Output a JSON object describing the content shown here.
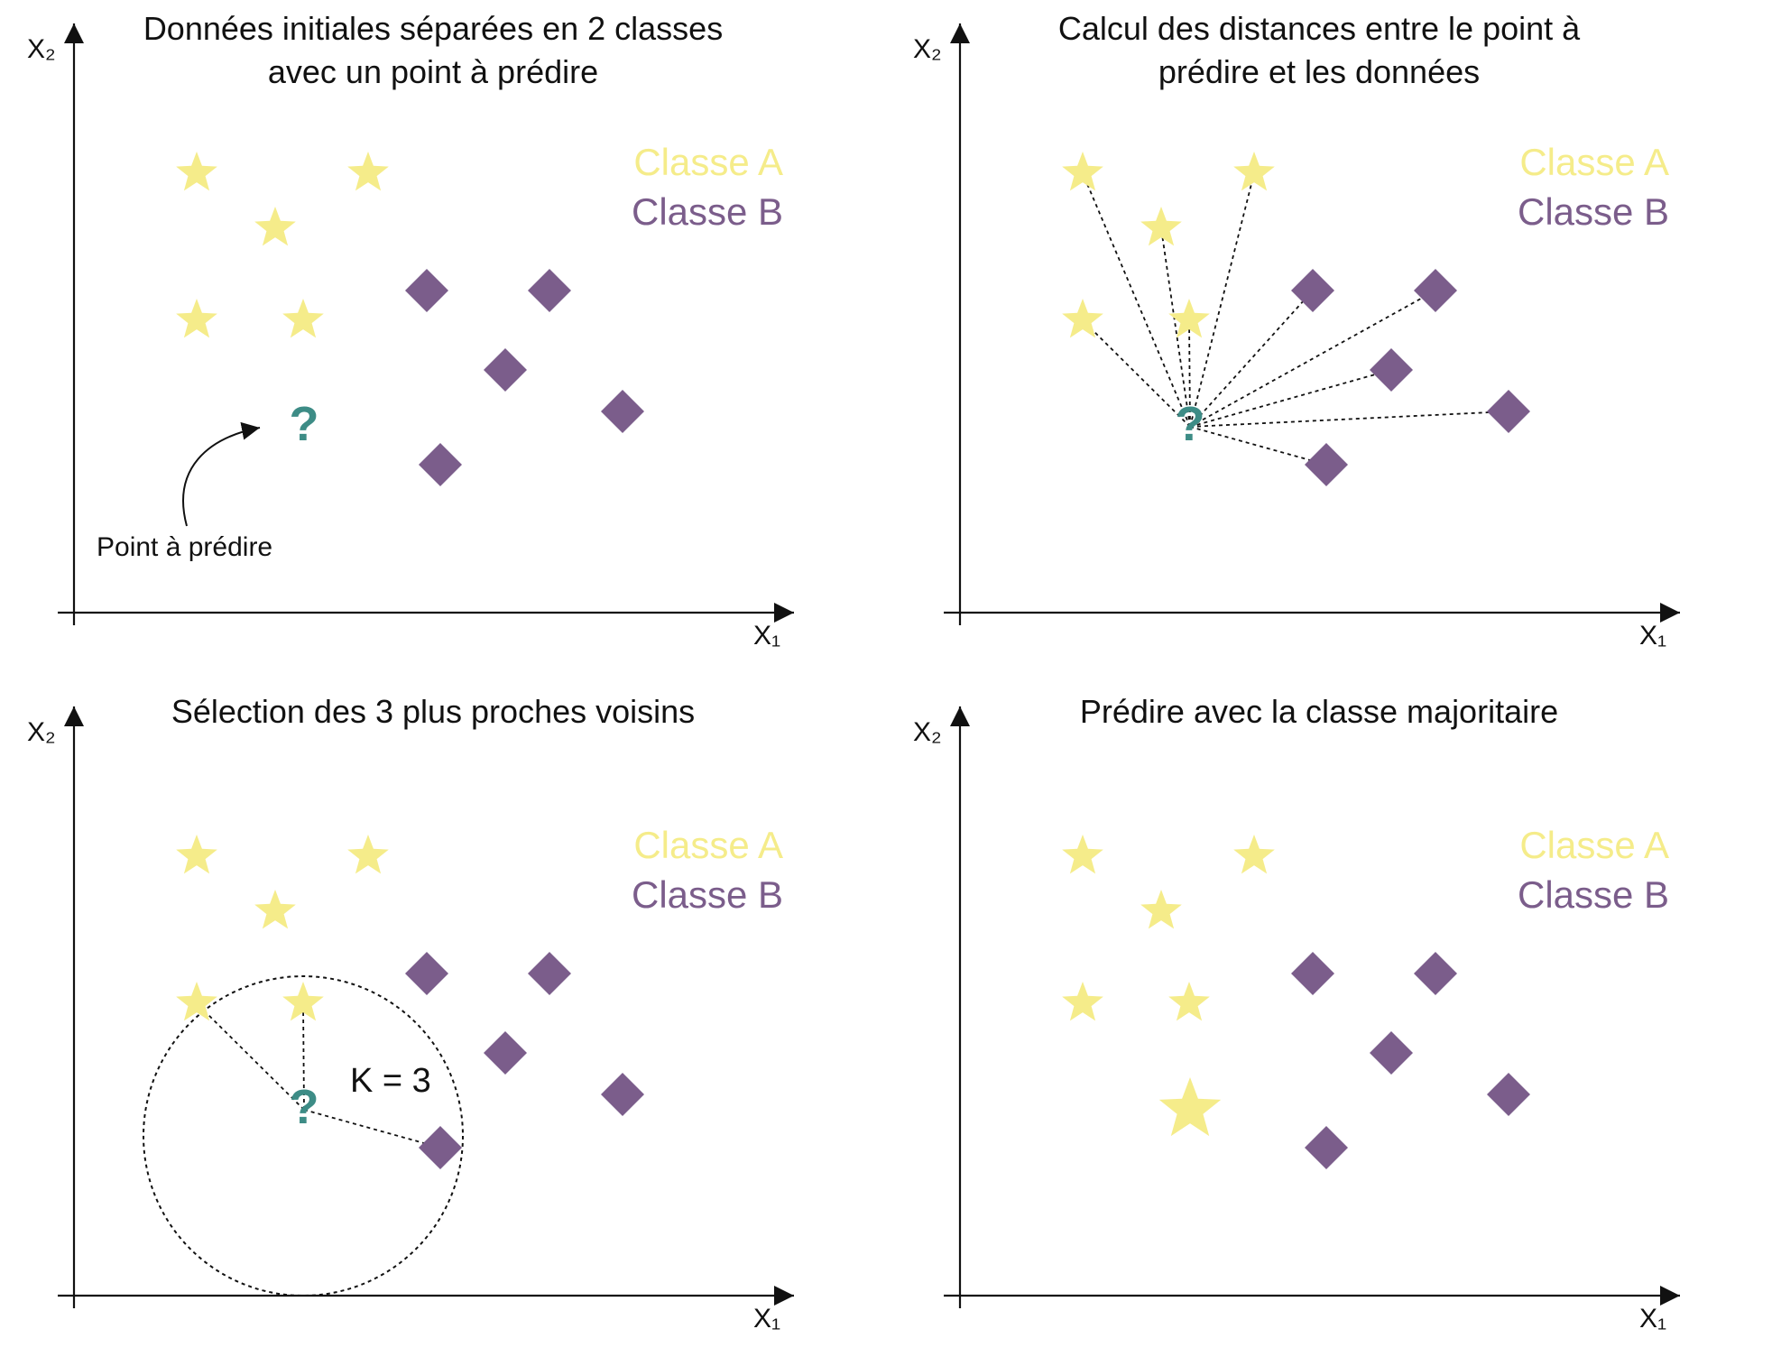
{
  "panels": [
    {
      "title": "Données initiales séparées en 2 classes avec un point à prédire",
      "label": "Point à prédire"
    },
    {
      "title": "Calcul des distances entre le point à prédire et les données"
    },
    {
      "title": "Sélection des 3 plus proches voisins",
      "label": "K = 3"
    },
    {
      "title": "Prédire avec la classe majoritaire"
    }
  ],
  "axes": {
    "x_label": "X₁",
    "y_label": "X₂"
  },
  "legend": {
    "class_a": "Classe A",
    "class_b": "Classe B"
  },
  "query": {
    "symbol": "?"
  },
  "colors": {
    "class_a": "#f5ec8a",
    "class_b": "#7b5d8b",
    "query": "#3d8c86",
    "axis": "#111111"
  },
  "icons": {
    "class_a": "star-icon",
    "class_b": "diamond-icon",
    "query": "question-mark-icon"
  }
}
